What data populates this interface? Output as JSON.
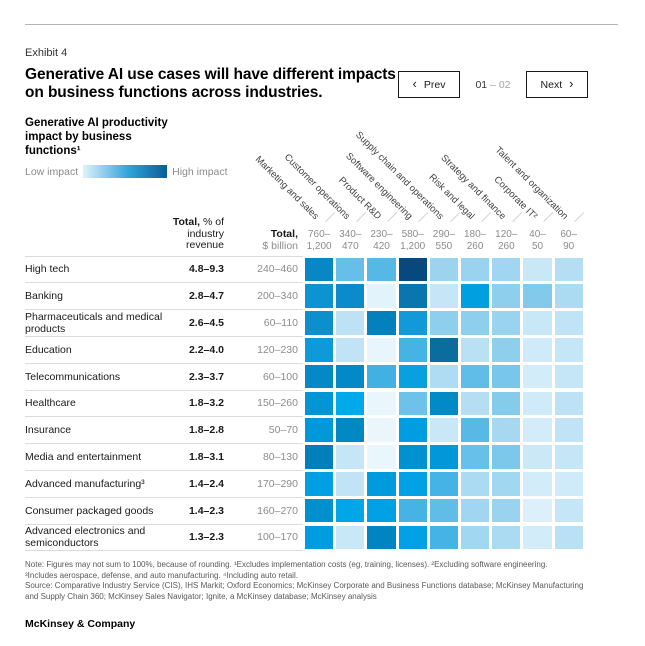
{
  "header": {
    "exhibit_label": "Exhibit 4",
    "title": "Generative AI use cases will have different impacts on business functions across industries.",
    "pagination": {
      "prev_chevron": "‹",
      "prev_label": "Prev",
      "range_current": "01",
      "range_rest": " – 02",
      "next_label": "Next",
      "next_chevron": "›"
    }
  },
  "chart_data": {
    "type": "heatmap",
    "title": "Generative AI productivity impact by business functions¹",
    "value_encoding": "cell color encodes generative AI productivity impact, low (light blue) to high (dark blue), levels 1–10",
    "legend": {
      "low_label": "Low impact",
      "high_label": "High impact",
      "gradient": [
        "#dff2fb",
        "#2ea2da",
        "#0b5d96"
      ]
    },
    "row_header": {
      "bold": "Total,",
      "rest": " % of industry revenue"
    },
    "col_header": {
      "bold": "Total,",
      "rest": "$ billion"
    },
    "columns": [
      "Marketing and sales",
      "Customer operations",
      "Product R&D",
      "Software engineering",
      "Supply chain and operations",
      "Risk and legal",
      "Strategy and finance",
      "Corporate IT²",
      "Talent and organization"
    ],
    "column_totals_bn": [
      "760–\n1,200",
      "340–\n470",
      "230–\n420",
      "580–\n1,200",
      "290–\n550",
      "180–\n260",
      "120–\n260",
      "40–\n50",
      "60–\n90"
    ],
    "rows": [
      {
        "industry": "High tech",
        "revenue_pct": "4.8–9.3",
        "total_bn": "240–460",
        "levels": [
          7,
          4,
          5,
          10,
          3,
          3,
          3,
          2,
          2
        ],
        "colors": [
          "#0987c5",
          "#66bfe9",
          "#55b8e6",
          "#07487f",
          "#9cd4f0",
          "#99d3ef",
          "#a0d6f1",
          "#c8e7f7",
          "#b5def3"
        ]
      },
      {
        "industry": "Banking",
        "revenue_pct": "2.8–4.7",
        "total_bn": "200–340",
        "levels": [
          7,
          7,
          1,
          9,
          2,
          6,
          3,
          4,
          3
        ],
        "colors": [
          "#0b93d2",
          "#0a8cca",
          "#e2f3fb",
          "#0a76ae",
          "#c5e6f6",
          "#009fe0",
          "#8ecfed",
          "#81caec",
          "#aadbf2"
        ]
      },
      {
        "industry": "Pharmaceuticals and medical products",
        "revenue_pct": "2.6–4.5",
        "total_bn": "60–110",
        "levels": [
          7,
          2,
          8,
          6,
          3,
          3,
          3,
          2,
          2
        ],
        "colors": [
          "#0c90cd",
          "#bde2f5",
          "#0381bc",
          "#129ad8",
          "#8ecfed",
          "#8ecfed",
          "#99d3ef",
          "#c8e7f7",
          "#c0e4f5"
        ]
      },
      {
        "industry": "Education",
        "revenue_pct": "2.2–4.0",
        "total_bn": "120–230",
        "levels": [
          6,
          2,
          1,
          5,
          9,
          2,
          3,
          2,
          2
        ],
        "colors": [
          "#0e9ad8",
          "#c0e4f5",
          "#e8f5fc",
          "#46b3e5",
          "#0a6d9d",
          "#bae0f4",
          "#8ecfed",
          "#cfeaf8",
          "#c5e6f6"
        ]
      },
      {
        "industry": "Telecommunications",
        "revenue_pct": "2.3–3.7",
        "total_bn": "60–100",
        "levels": [
          8,
          8,
          5,
          6,
          3,
          4,
          4,
          1,
          2
        ],
        "colors": [
          "#0589c6",
          "#0389c6",
          "#41b1e4",
          "#09a0e0",
          "#aedcf2",
          "#60bde8",
          "#78c6ea",
          "#d3ecf9",
          "#c5e6f6"
        ]
      },
      {
        "industry": "Healthcare",
        "revenue_pct": "1.8–3.2",
        "total_bn": "150–260",
        "levels": [
          7,
          6,
          1,
          4,
          8,
          2,
          3,
          2,
          2
        ],
        "colors": [
          "#0096d6",
          "#00a9ea",
          "#e9f6fc",
          "#6cc2e9",
          "#008ac6",
          "#b5def3",
          "#85ccec",
          "#cfeaf8",
          "#bde2f5"
        ]
      },
      {
        "industry": "Insurance",
        "revenue_pct": "1.8–2.8",
        "total_bn": "50–70",
        "levels": [
          7,
          8,
          1,
          6,
          2,
          5,
          3,
          1,
          2
        ],
        "colors": [
          "#0098d8",
          "#0088c2",
          "#eaf6fc",
          "#009de0",
          "#c8e7f7",
          "#58b9e7",
          "#a6d9f1",
          "#d3ecf9",
          "#c0e4f5"
        ]
      },
      {
        "industry": "Media and entertainment",
        "revenue_pct": "1.8–3.1",
        "total_bn": "80–130",
        "levels": [
          9,
          2,
          1,
          7,
          7,
          4,
          4,
          2,
          2
        ],
        "colors": [
          "#0080ba",
          "#c5e6f6",
          "#e9f6fc",
          "#0092d0",
          "#0098d8",
          "#67c0e9",
          "#7bc8eb",
          "#cbe8f7",
          "#c5e6f6"
        ]
      },
      {
        "industry": "Advanced manufacturing³",
        "revenue_pct": "1.4–2.4",
        "total_bn": "170–290",
        "levels": [
          6,
          2,
          6,
          6,
          5,
          3,
          3,
          1,
          2
        ],
        "colors": [
          "#009ee2",
          "#c0e4f5",
          "#009ade",
          "#00a2e5",
          "#46b3e5",
          "#aadbf2",
          "#a2d7f1",
          "#d3ecf9",
          "#cfeaf8"
        ]
      },
      {
        "industry": "Consumer packaged goods",
        "revenue_pct": "1.4–2.3",
        "total_bn": "160–270",
        "levels": [
          7,
          6,
          6,
          5,
          4,
          3,
          3,
          1,
          2
        ],
        "colors": [
          "#0090ce",
          "#00a6e8",
          "#00a0e4",
          "#46b3e5",
          "#60bde8",
          "#a0d6f1",
          "#99d3ef",
          "#dbf0fb",
          "#c5e6f6"
        ]
      },
      {
        "industry": "Advanced electronics and semiconductors",
        "revenue_pct": "1.3–2.3",
        "total_bn": "100–170",
        "levels": [
          6,
          2,
          8,
          6,
          5,
          3,
          3,
          1,
          2
        ],
        "colors": [
          "#009ce0",
          "#c8e7f7",
          "#0085c2",
          "#00a2e5",
          "#46b3e5",
          "#a2d7f1",
          "#aadbf2",
          "#d3ecf9",
          "#bae0f4"
        ]
      }
    ]
  },
  "footnotes": "Note: Figures may not sum to 100%, because of rounding. ¹Excludes implementation costs (eg, training, licenses). ²Excluding software engineering.\n³Includes aerospace, defense, and auto manufacturing. ⁴Including auto retail.\nSource: Comparative Industry Service (CIS), IHS Markit; Oxford Economics; McKinsey Corporate and Business Functions database; McKinsey Manufacturing\nand Supply Chain 360; McKinsey Sales Navigator; Ignite, a McKinsey database; McKinsey analysis",
  "brand": "McKinsey & Company"
}
